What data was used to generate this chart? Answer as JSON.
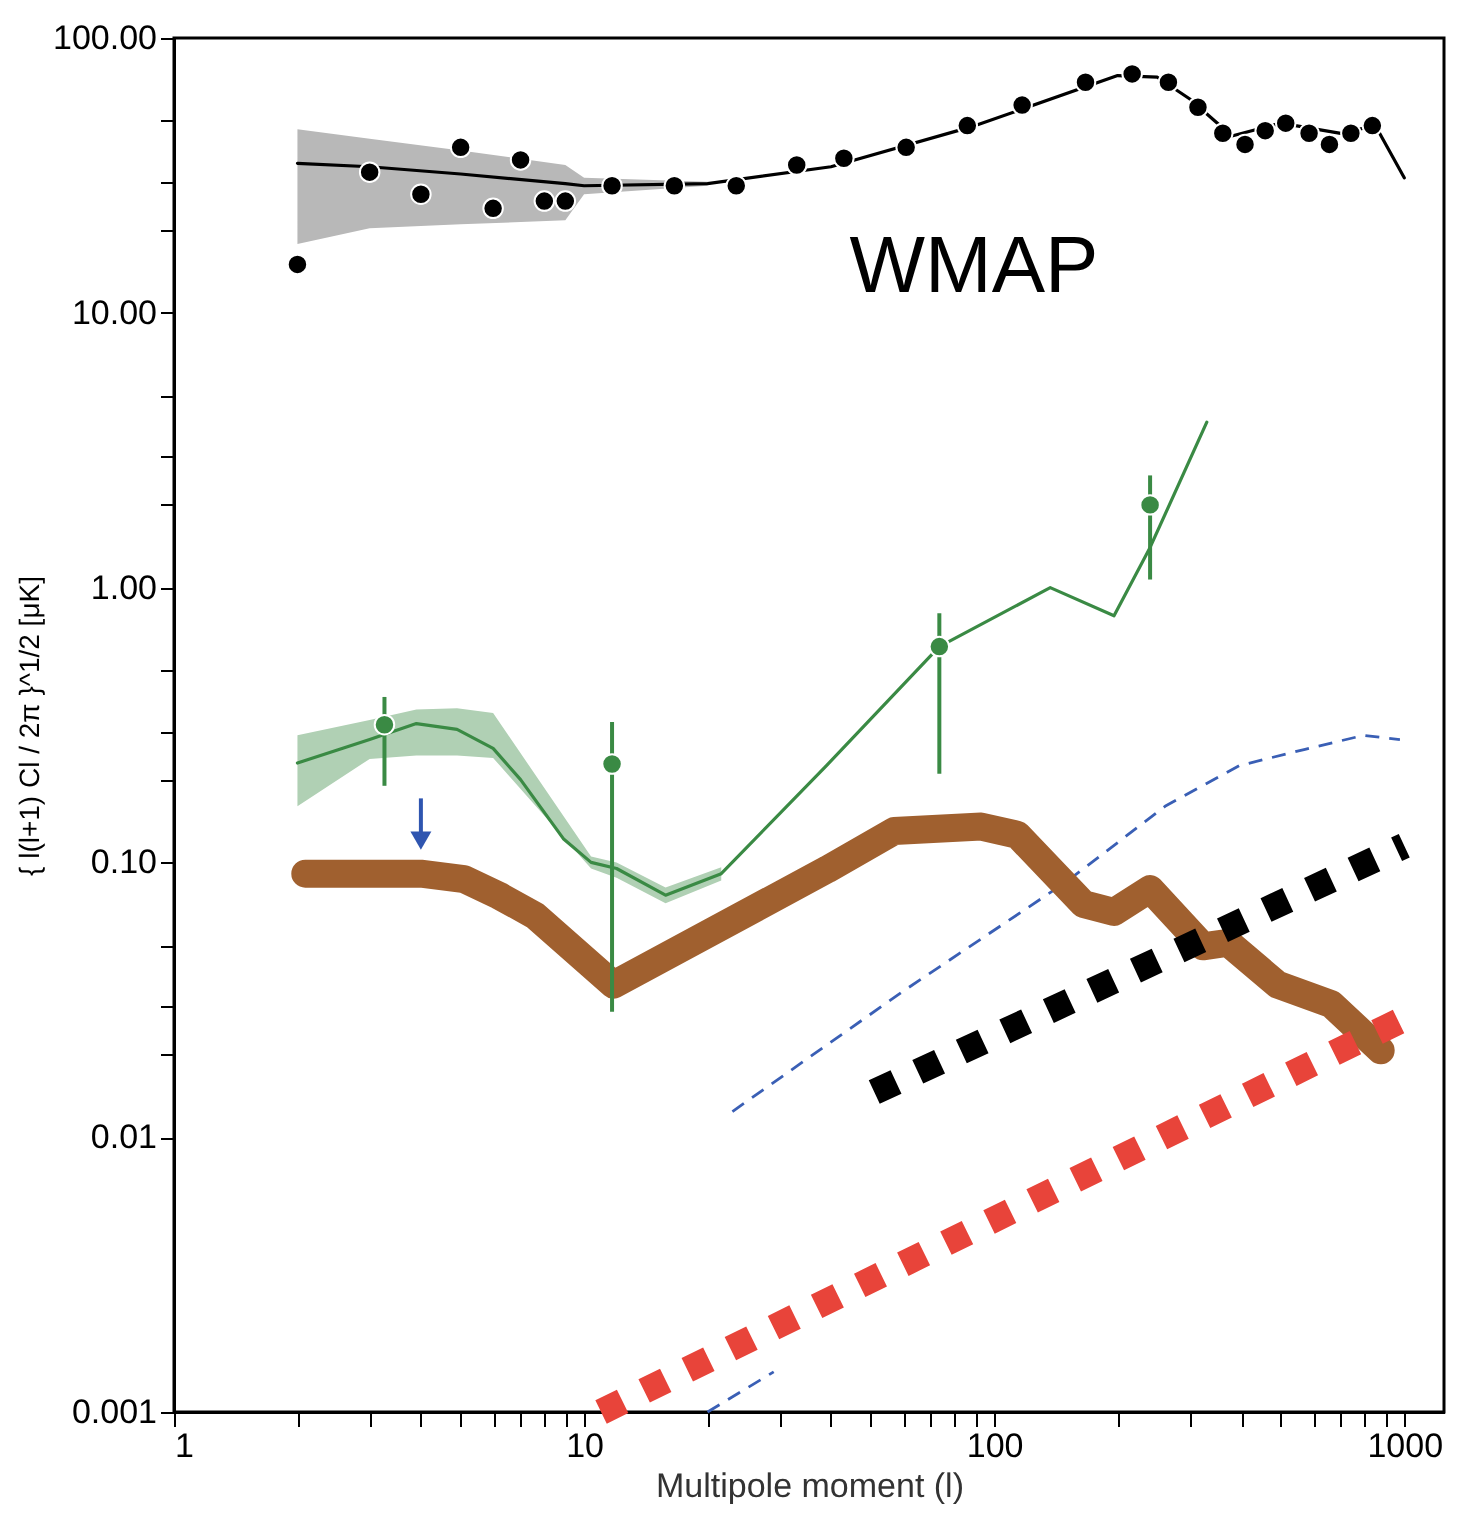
{
  "chart_data": {
    "type": "line",
    "xlabel": "Multipole moment (l)",
    "ylabel": "{ l(l+1) Cl / 2π }^1/2   [μK]",
    "log": "xy",
    "grid": false,
    "xlim": [
      1,
      1250
    ],
    "ylim": [
      0.001,
      100
    ],
    "xticks": [
      1,
      {
        "value": 2,
        "label": null
      },
      {
        "value": 3,
        "label": null
      },
      {
        "value": 4,
        "label": null
      },
      {
        "value": 5,
        "label": null
      },
      {
        "value": 6,
        "label": null
      },
      {
        "value": 7,
        "label": null
      },
      {
        "value": 8,
        "label": null
      },
      {
        "value": 9,
        "label": null
      },
      10,
      {
        "value": 20,
        "label": null
      },
      {
        "value": 30,
        "label": null
      },
      {
        "value": 40,
        "label": null
      },
      {
        "value": 50,
        "label": null
      },
      {
        "value": 60,
        "label": null
      },
      {
        "value": 70,
        "label": null
      },
      {
        "value": 80,
        "label": null
      },
      {
        "value": 90,
        "label": null
      },
      100,
      {
        "value": 200,
        "label": null
      },
      {
        "value": 300,
        "label": null
      },
      {
        "value": 400,
        "label": null
      },
      {
        "value": 500,
        "label": null
      },
      {
        "value": 600,
        "label": null
      },
      {
        "value": 700,
        "label": null
      },
      {
        "value": 800,
        "label": null
      },
      {
        "value": 900,
        "label": null
      },
      1000
    ],
    "yticks": [
      {
        "value": 0.001,
        "label": "0.001"
      },
      {
        "value": 0.01,
        "label": "0.01"
      },
      {
        "value": 0.1,
        "label": "0.10"
      },
      {
        "value": 1,
        "label": "1.00"
      },
      {
        "value": 10,
        "label": "10.00"
      },
      {
        "value": 100,
        "label": "100.00"
      },
      {
        "value": 0.02,
        "label": null
      },
      {
        "value": 0.03,
        "label": null
      },
      {
        "value": 0.05,
        "label": null
      },
      {
        "value": 0.2,
        "label": null
      },
      {
        "value": 0.3,
        "label": null
      },
      {
        "value": 0.5,
        "label": null
      },
      {
        "value": 2,
        "label": null
      },
      {
        "value": 3,
        "label": null
      },
      {
        "value": 5,
        "label": null
      },
      {
        "value": 20,
        "label": null
      },
      {
        "value": 30,
        "label": null
      },
      {
        "value": 50,
        "label": null
      }
    ],
    "series": [
      {
        "type": "line",
        "color": "#000000",
        "line_style": "solid",
        "x": [
          2,
          3,
          5,
          9,
          10,
          20,
          40,
          90,
          200,
          250,
          300,
          380,
          500,
          700,
          850,
          1000
        ],
        "values": [
          35,
          34,
          32,
          29.5,
          29,
          29.5,
          34,
          48,
          73,
          72,
          60,
          44,
          49,
          45,
          48,
          31
        ],
        "lower": [
          17.8,
          20.3,
          21,
          21.7,
          27,
          29,
          null,
          null,
          null,
          null,
          null,
          null,
          null,
          null,
          null,
          null
        ],
        "upper": [
          46.6,
          43,
          39,
          34.5,
          31,
          30,
          null,
          null,
          null,
          null,
          null,
          null,
          null,
          null,
          null,
          null
        ]
      },
      {
        "type": "scatter",
        "color": "#000000",
        "marker": "circle",
        "x": [
          2,
          3,
          4,
          5,
          6,
          7,
          8,
          9,
          11.7,
          16.6,
          23.5,
          33,
          43,
          61,
          86,
          117,
          167,
          217,
          266,
          314,
          361,
          409,
          458,
          514,
          586,
          657,
          741,
          836
        ],
        "values": [
          15,
          32.5,
          27,
          40,
          24,
          36,
          25.5,
          25.5,
          29,
          29,
          29,
          34.5,
          36.5,
          40,
          48,
          57,
          69,
          74,
          69,
          56,
          45,
          41,
          46,
          49,
          45,
          41,
          45,
          48
        ]
      },
      {
        "type": "line",
        "color": "#3a8a44",
        "line_style": "solid",
        "x": [
          2,
          3,
          3.9,
          4.9,
          6,
          7,
          8.9,
          10.4,
          12,
          15.8,
          21.6,
          39,
          73.5,
          137,
          196,
          240,
          330
        ],
        "values": [
          0.23,
          0.28,
          0.32,
          0.305,
          0.26,
          0.2,
          0.122,
          0.1,
          0.095,
          0.076,
          0.091,
          0.225,
          0.61,
          1.0,
          0.79,
          1.4,
          4.0
        ],
        "lower": [
          0.16,
          0.238,
          0.245,
          0.245,
          0.24,
          null,
          null,
          0.095,
          0.088,
          0.071,
          0.086,
          null,
          null,
          null,
          null,
          null,
          null
        ],
        "upper": [
          0.29,
          0.33,
          0.36,
          0.364,
          0.35,
          null,
          null,
          0.105,
          0.1,
          0.081,
          0.096,
          null,
          null,
          null,
          null,
          null,
          null
        ]
      },
      {
        "type": "scatter",
        "color": "#3a8a44",
        "marker": "circle",
        "x": [
          3.26,
          11.7,
          73.5,
          240
        ],
        "values": [
          0.317,
          0.228,
          0.61,
          2.0
        ],
        "errors": [
          [
            0.19,
            0.4
          ],
          [
            0.0286,
            0.324
          ],
          [
            0.21,
            0.806
          ],
          [
            1.07,
            2.56
          ]
        ]
      },
      {
        "type": "scatter",
        "color": "#2f55b0",
        "marker": "triangle",
        "x": [
          4
        ],
        "values": [
          0.12
        ],
        "errors": [
          [
            0.12,
            0.171
          ]
        ]
      },
      {
        "type": "line",
        "color": "#3a5fb5",
        "line_style": "dashed",
        "x": [
          23,
          60,
          150,
          261,
          396,
          573,
          796,
          976
        ],
        "values": [
          0.0124,
          0.034,
          0.085,
          0.16,
          0.225,
          0.258,
          0.29,
          0.28
        ]
      },
      {
        "type": "line",
        "color": "#3a5fb5",
        "line_style": "dashed",
        "x": [
          20,
          29
        ],
        "values": [
          0.001,
          0.0014
        ]
      },
      {
        "type": "line",
        "color": "#a0602f",
        "line_style": "solid",
        "x": [
          2.09,
          4.0,
          5.1,
          6.2,
          7.6,
          11.8,
          39.2,
          57,
          93,
          114,
          165,
          196,
          240,
          323,
          372,
          491,
          664,
          876
        ],
        "values": [
          0.091,
          0.091,
          0.087,
          0.0757,
          0.064,
          0.0359,
          0.0944,
          0.13,
          0.135,
          0.126,
          0.0706,
          0.066,
          0.08,
          0.0495,
          0.051,
          0.0359,
          0.0305,
          0.0207
        ]
      },
      {
        "type": "line",
        "color": "#000000",
        "line_style": "dotted",
        "x": [
          51,
          1000
        ],
        "values": [
          0.0146,
          0.115
        ]
      },
      {
        "type": "line",
        "color": "#e8443a",
        "line_style": "dotted",
        "x": [
          11,
          1000
        ],
        "values": [
          0.001,
          0.027
        ]
      }
    ],
    "annotations": [
      "WMAP"
    ]
  }
}
